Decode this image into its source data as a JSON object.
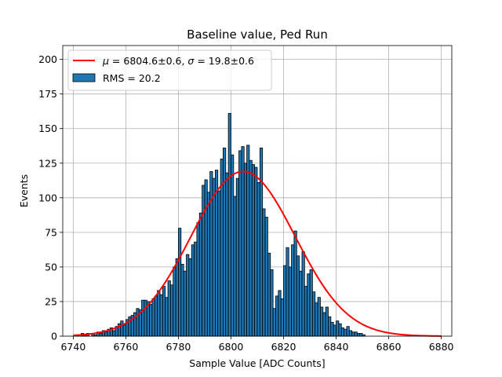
{
  "chart_data": {
    "type": "bar",
    "title": "Baseline value, Ped Run",
    "xlabel": "Sample Value [ADC Counts]",
    "ylabel": "Events",
    "xlim": [
      6736,
      6884
    ],
    "ylim": [
      0,
      210
    ],
    "grid": true,
    "legend_position": "top-left",
    "x_ticks": [
      6740,
      6760,
      6780,
      6800,
      6820,
      6840,
      6860,
      6880
    ],
    "x_tick_labels": [
      "6740",
      "6760",
      "6780",
      "6800",
      "6820",
      "6840",
      "6860",
      "6880"
    ],
    "y_ticks": [
      0,
      25,
      50,
      75,
      100,
      125,
      150,
      175,
      200
    ],
    "y_tick_labels": [
      "0",
      "25",
      "50",
      "75",
      "100",
      "125",
      "150",
      "175",
      "200"
    ],
    "bin_start": 6740,
    "bin_width": 1,
    "counts": [
      0,
      1,
      0,
      2,
      1,
      2,
      0,
      2,
      1,
      3,
      2,
      4,
      3,
      5,
      6,
      4,
      7,
      9,
      11,
      8,
      12,
      14,
      15,
      17,
      20,
      19,
      26,
      26,
      25,
      23,
      27,
      29,
      33,
      30,
      36,
      28,
      40,
      37,
      50,
      56,
      78,
      52,
      47,
      59,
      56,
      66,
      68,
      82,
      89,
      109,
      113,
      104,
      119,
      114,
      120,
      105,
      128,
      136,
      118,
      161,
      131,
      101,
      114,
      134,
      137,
      125,
      138,
      127,
      124,
      122,
      111,
      136,
      92,
      86,
      60,
      48,
      20,
      29,
      33,
      27,
      51,
      64,
      50,
      66,
      76,
      58,
      47,
      61,
      36,
      45,
      48,
      32,
      24,
      28,
      21,
      17,
      21,
      14,
      10,
      8,
      11,
      9,
      6,
      5,
      7,
      4,
      3,
      3,
      2,
      2,
      1,
      0,
      0,
      0,
      0,
      0,
      0,
      0,
      0,
      0,
      0,
      0,
      0,
      0,
      0,
      0,
      0,
      0,
      0,
      0,
      0,
      0,
      0,
      0,
      0,
      0,
      0,
      0,
      0,
      0
    ],
    "series": [
      {
        "name": "RMS = 20.2",
        "kind": "histogram",
        "color": "#1f77b4",
        "edge_color": "#000000"
      },
      {
        "name": "μ = 6804.6±0.6, σ = 19.8±0.6",
        "name_parts": {
          "mu_symbol": "μ",
          "mu_value": " = 6804.6±0.6, ",
          "sigma_symbol": "σ",
          "sigma_value": " = 19.8±0.6"
        },
        "kind": "gaussian_fit",
        "color": "#ff0000",
        "mu": 6804.6,
        "sigma": 19.8,
        "amplitude": 119,
        "range": [
          6740,
          6880
        ]
      }
    ]
  }
}
